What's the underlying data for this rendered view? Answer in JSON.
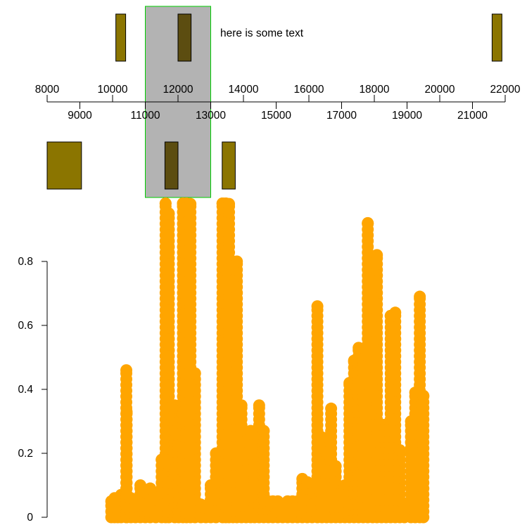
{
  "annotation": {
    "text": "here is some text"
  },
  "chart_data": [
    {
      "type": "genomic-track",
      "xlim": [
        8000,
        22000
      ],
      "top_tick_labels": [
        "8000",
        "10000",
        "12000",
        "14000",
        "16000",
        "18000",
        "20000",
        "22000"
      ],
      "bottom_tick_labels": [
        "9000",
        "11000",
        "13000",
        "15000",
        "17000",
        "19000",
        "21000"
      ],
      "highlight_region": {
        "start": 11000,
        "end": 13000,
        "fill": "#b3b3b3",
        "border": "#00cc00"
      },
      "feature_colors": {
        "normal": "#8b7500",
        "in_highlight": "#5c4d10"
      },
      "top_track": [
        {
          "start": 10100,
          "end": 10400
        },
        {
          "start": 12000,
          "end": 12400
        },
        {
          "start": 21600,
          "end": 21900
        }
      ],
      "bottom_track": [
        {
          "start": 8000,
          "end": 9050
        },
        {
          "start": 11600,
          "end": 12000
        },
        {
          "start": 13350,
          "end": 13750
        }
      ]
    },
    {
      "type": "scatter",
      "color": "#ffa500",
      "xlim": [
        8000,
        22000
      ],
      "ylim": [
        0,
        1
      ],
      "yticks": [
        "0",
        "0.2",
        "0.4",
        "0.6",
        "0.8"
      ],
      "columns": [
        {
          "x": 9960,
          "top": 0.05
        },
        {
          "x": 10060,
          "top": 0.06
        },
        {
          "x": 10160,
          "top": 0.05
        },
        {
          "x": 10260,
          "top": 0.07
        },
        {
          "x": 10420,
          "top": 0.46
        },
        {
          "x": 10430,
          "top": 0.33
        },
        {
          "x": 10560,
          "top": 0.06
        },
        {
          "x": 10700,
          "top": 0.05
        },
        {
          "x": 10850,
          "top": 0.1
        },
        {
          "x": 11000,
          "top": 0.08
        },
        {
          "x": 11150,
          "top": 0.09
        },
        {
          "x": 11320,
          "top": 0.07
        },
        {
          "x": 11500,
          "top": 0.18
        },
        {
          "x": 11620,
          "top": 0.99
        },
        {
          "x": 11720,
          "top": 0.95
        },
        {
          "x": 11900,
          "top": 0.35
        },
        {
          "x": 12020,
          "top": 0.3
        },
        {
          "x": 12150,
          "top": 0.99
        },
        {
          "x": 12260,
          "top": 0.99
        },
        {
          "x": 12380,
          "top": 0.98
        },
        {
          "x": 12520,
          "top": 0.45
        },
        {
          "x": 12700,
          "top": 0.04
        },
        {
          "x": 12850,
          "top": 0.03
        },
        {
          "x": 13000,
          "top": 0.1
        },
        {
          "x": 13160,
          "top": 0.2
        },
        {
          "x": 13360,
          "top": 0.99
        },
        {
          "x": 13460,
          "top": 0.99
        },
        {
          "x": 13560,
          "top": 0.98
        },
        {
          "x": 13680,
          "top": 0.8
        },
        {
          "x": 13800,
          "top": 0.8
        },
        {
          "x": 13940,
          "top": 0.35
        },
        {
          "x": 14080,
          "top": 0.05
        },
        {
          "x": 14220,
          "top": 0.27
        },
        {
          "x": 14340,
          "top": 0.26
        },
        {
          "x": 14480,
          "top": 0.35
        },
        {
          "x": 14620,
          "top": 0.27
        },
        {
          "x": 14760,
          "top": 0.05
        },
        {
          "x": 14900,
          "top": 0.05
        },
        {
          "x": 15050,
          "top": 0.05
        },
        {
          "x": 15200,
          "top": 0.04
        },
        {
          "x": 15350,
          "top": 0.05
        },
        {
          "x": 15500,
          "top": 0.05
        },
        {
          "x": 15650,
          "top": 0.05
        },
        {
          "x": 15800,
          "top": 0.12
        },
        {
          "x": 15950,
          "top": 0.11
        },
        {
          "x": 16100,
          "top": 0.04
        },
        {
          "x": 16260,
          "top": 0.66
        },
        {
          "x": 16400,
          "top": 0.25
        },
        {
          "x": 16540,
          "top": 0.2
        },
        {
          "x": 16680,
          "top": 0.34
        },
        {
          "x": 16820,
          "top": 0.16
        },
        {
          "x": 16960,
          "top": 0.07
        },
        {
          "x": 17100,
          "top": 0.1
        },
        {
          "x": 17240,
          "top": 0.42
        },
        {
          "x": 17380,
          "top": 0.49
        },
        {
          "x": 17520,
          "top": 0.53
        },
        {
          "x": 17660,
          "top": 0.49
        },
        {
          "x": 17800,
          "top": 0.92
        },
        {
          "x": 17950,
          "top": 0.43
        },
        {
          "x": 18080,
          "top": 0.82
        },
        {
          "x": 18220,
          "top": 0.29
        },
        {
          "x": 18360,
          "top": 0.29
        },
        {
          "x": 18500,
          "top": 0.63
        },
        {
          "x": 18640,
          "top": 0.64
        },
        {
          "x": 18780,
          "top": 0.21
        },
        {
          "x": 18920,
          "top": 0.03
        },
        {
          "x": 19120,
          "top": 0.3
        },
        {
          "x": 19250,
          "top": 0.39
        },
        {
          "x": 19390,
          "top": 0.69
        },
        {
          "x": 19500,
          "top": 0.38
        }
      ]
    }
  ]
}
